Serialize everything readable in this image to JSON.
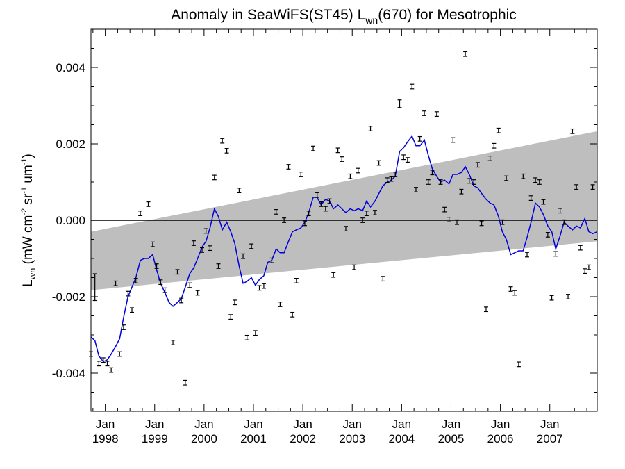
{
  "chart_data": {
    "type": "scatter",
    "title_main": "Anomaly in SeaWiFS(ST45) L",
    "title_sub": "wn",
    "title_end": "(670) for Mesotrophic",
    "ylabel": {
      "symbol": "L",
      "symbol_sub": "wn",
      "units_open": " (mW cm",
      "exp1": "-2",
      "mid1": " sr",
      "exp2": "-1",
      "mid2": " um",
      "exp3": "-1",
      "close": ")"
    },
    "ylim": [
      -0.005,
      0.005
    ],
    "yticks": [
      -0.004,
      -0.002,
      0.0,
      0.002,
      0.004
    ],
    "ytick_labels": [
      "-0.004",
      "-0.002",
      "0.000",
      "0.002",
      "0.004"
    ],
    "xlim": [
      1997.71,
      2007.96
    ],
    "xticks": [
      {
        "month": "Jan",
        "year": "1998",
        "x": 1998.0
      },
      {
        "month": "Jan",
        "year": "1999",
        "x": 1999.0
      },
      {
        "month": "Jan",
        "year": "2000",
        "x": 2000.0
      },
      {
        "month": "Jan",
        "year": "2001",
        "x": 2001.0
      },
      {
        "month": "Jan",
        "year": "2002",
        "x": 2002.0
      },
      {
        "month": "Jan",
        "year": "2003",
        "x": 2003.0
      },
      {
        "month": "Jan",
        "year": "2004",
        "x": 2004.0
      },
      {
        "month": "Jan",
        "year": "2005",
        "x": 2005.0
      },
      {
        "month": "Jan",
        "year": "2006",
        "x": 2006.0
      },
      {
        "month": "Jan",
        "year": "2007",
        "x": 2007.0
      }
    ],
    "zero_line": 0.0,
    "trend_band": {
      "x": [
        1997.71,
        2007.96
      ],
      "upper": [
        -0.0003,
        0.00233
      ],
      "lower": [
        -0.00183,
        -0.00055
      ],
      "color": "#bebebe"
    },
    "points": [
      {
        "x": 1997.71,
        "y": -0.0035,
        "err": 6e-05
      },
      {
        "x": 1997.79,
        "y": -0.00175,
        "err": 0.00035
      },
      {
        "x": 1997.87,
        "y": -0.00375,
        "err": 6e-05
      },
      {
        "x": 1997.96,
        "y": -0.00366,
        "err": 6e-05
      },
      {
        "x": 1998.04,
        "y": -0.00375,
        "err": 6e-05
      },
      {
        "x": 1998.12,
        "y": -0.00392,
        "err": 6e-05
      },
      {
        "x": 1998.21,
        "y": -0.00165,
        "err": 6e-05
      },
      {
        "x": 1998.29,
        "y": -0.0035,
        "err": 6e-05
      },
      {
        "x": 1998.37,
        "y": -0.0028,
        "err": 6e-05
      },
      {
        "x": 1998.46,
        "y": -0.00192,
        "err": 6e-05
      },
      {
        "x": 1998.54,
        "y": -0.00235,
        "err": 6e-05
      },
      {
        "x": 1998.62,
        "y": -0.00158,
        "err": 6e-05
      },
      {
        "x": 1998.71,
        "y": 0.00018,
        "err": 6e-05
      },
      {
        "x": 1998.87,
        "y": 0.00042,
        "err": 6e-05
      },
      {
        "x": 1998.96,
        "y": -0.00063,
        "err": 6e-05
      },
      {
        "x": 1999.04,
        "y": -0.0012,
        "err": 6e-05
      },
      {
        "x": 1999.12,
        "y": -0.00162,
        "err": 6e-05
      },
      {
        "x": 1999.21,
        "y": -0.00183,
        "err": 6e-05
      },
      {
        "x": 1999.37,
        "y": -0.0032,
        "err": 6e-05
      },
      {
        "x": 1999.46,
        "y": -0.00135,
        "err": 6e-05
      },
      {
        "x": 1999.54,
        "y": -0.0021,
        "err": 6e-05
      },
      {
        "x": 1999.62,
        "y": -0.00425,
        "err": 6e-05
      },
      {
        "x": 1999.71,
        "y": -0.0017,
        "err": 6e-05
      },
      {
        "x": 1999.79,
        "y": -0.0006,
        "err": 6e-05
      },
      {
        "x": 1999.87,
        "y": -0.0019,
        "err": 6e-05
      },
      {
        "x": 1999.96,
        "y": -0.00078,
        "err": 6e-05
      },
      {
        "x": 2000.04,
        "y": -0.00028,
        "err": 6e-05
      },
      {
        "x": 2000.12,
        "y": -0.00073,
        "err": 6e-05
      },
      {
        "x": 2000.21,
        "y": 0.00112,
        "err": 6e-05
      },
      {
        "x": 2000.29,
        "y": -0.0012,
        "err": 6e-05
      },
      {
        "x": 2000.37,
        "y": 0.00208,
        "err": 6e-05
      },
      {
        "x": 2000.46,
        "y": 0.00182,
        "err": 6e-05
      },
      {
        "x": 2000.54,
        "y": -0.00253,
        "err": 6e-05
      },
      {
        "x": 2000.62,
        "y": -0.00215,
        "err": 6e-05
      },
      {
        "x": 2000.71,
        "y": 0.00078,
        "err": 6e-05
      },
      {
        "x": 2000.79,
        "y": -0.00094,
        "err": 6e-05
      },
      {
        "x": 2000.87,
        "y": -0.00307,
        "err": 6e-05
      },
      {
        "x": 2000.96,
        "y": -0.00068,
        "err": 6e-05
      },
      {
        "x": 2001.04,
        "y": -0.00295,
        "err": 6e-05
      },
      {
        "x": 2001.12,
        "y": -0.00177,
        "err": 6e-05
      },
      {
        "x": 2001.21,
        "y": -0.00172,
        "err": 6e-05
      },
      {
        "x": 2001.37,
        "y": -0.00105,
        "err": 6e-05
      },
      {
        "x": 2001.46,
        "y": 0.00022,
        "err": 6e-05
      },
      {
        "x": 2001.54,
        "y": -0.0022,
        "err": 6e-05
      },
      {
        "x": 2001.62,
        "y": 0.0,
        "err": 6e-05
      },
      {
        "x": 2001.71,
        "y": 0.0014,
        "err": 6e-05
      },
      {
        "x": 2001.79,
        "y": -0.00247,
        "err": 6e-05
      },
      {
        "x": 2001.87,
        "y": -0.00158,
        "err": 6e-05
      },
      {
        "x": 2001.96,
        "y": 0.0012,
        "err": 6e-05
      },
      {
        "x": 2002.04,
        "y": -8e-05,
        "err": 6e-05
      },
      {
        "x": 2002.12,
        "y": 0.00018,
        "err": 6e-05
      },
      {
        "x": 2002.21,
        "y": 0.00188,
        "err": 6e-05
      },
      {
        "x": 2002.29,
        "y": 0.00066,
        "err": 6e-05
      },
      {
        "x": 2002.37,
        "y": 0.00042,
        "err": 6e-05
      },
      {
        "x": 2002.46,
        "y": 0.0003,
        "err": 6e-05
      },
      {
        "x": 2002.54,
        "y": 0.0005,
        "err": 6e-05
      },
      {
        "x": 2002.62,
        "y": -0.00143,
        "err": 6e-05
      },
      {
        "x": 2002.71,
        "y": 0.00183,
        "err": 6e-05
      },
      {
        "x": 2002.79,
        "y": 0.0016,
        "err": 6e-05
      },
      {
        "x": 2002.87,
        "y": -0.00022,
        "err": 6e-05
      },
      {
        "x": 2002.96,
        "y": 0.00115,
        "err": 6e-05
      },
      {
        "x": 2003.04,
        "y": -0.00123,
        "err": 6e-05
      },
      {
        "x": 2003.12,
        "y": 0.0013,
        "err": 6e-05
      },
      {
        "x": 2003.21,
        "y": 0.0,
        "err": 6e-05
      },
      {
        "x": 2003.29,
        "y": 0.00018,
        "err": 6e-05
      },
      {
        "x": 2003.37,
        "y": 0.0024,
        "err": 6e-05
      },
      {
        "x": 2003.46,
        "y": 0.0002,
        "err": 6e-05
      },
      {
        "x": 2003.54,
        "y": 0.0015,
        "err": 6e-05
      },
      {
        "x": 2003.62,
        "y": -0.00153,
        "err": 6e-05
      },
      {
        "x": 2003.71,
        "y": 0.00105,
        "err": 6e-05
      },
      {
        "x": 2003.79,
        "y": 0.00108,
        "err": 6e-05
      },
      {
        "x": 2003.87,
        "y": 0.0012,
        "err": 6e-05
      },
      {
        "x": 2003.96,
        "y": 0.00305,
        "err": 0.0001
      },
      {
        "x": 2004.04,
        "y": 0.00165,
        "err": 6e-05
      },
      {
        "x": 2004.12,
        "y": 0.00158,
        "err": 6e-05
      },
      {
        "x": 2004.21,
        "y": 0.0035,
        "err": 6e-05
      },
      {
        "x": 2004.29,
        "y": 0.0008,
        "err": 6e-05
      },
      {
        "x": 2004.37,
        "y": 0.00213,
        "err": 6e-05
      },
      {
        "x": 2004.46,
        "y": 0.0028,
        "err": 6e-05
      },
      {
        "x": 2004.54,
        "y": 0.001,
        "err": 6e-05
      },
      {
        "x": 2004.62,
        "y": 0.00125,
        "err": 6e-05
      },
      {
        "x": 2004.71,
        "y": 0.00278,
        "err": 6e-05
      },
      {
        "x": 2004.79,
        "y": 0.001,
        "err": 6e-05
      },
      {
        "x": 2004.87,
        "y": 0.00028,
        "err": 6e-05
      },
      {
        "x": 2004.96,
        "y": 2e-05,
        "err": 6e-05
      },
      {
        "x": 2005.04,
        "y": 0.0021,
        "err": 6e-05
      },
      {
        "x": 2005.12,
        "y": -5e-05,
        "err": 6e-05
      },
      {
        "x": 2005.21,
        "y": 0.00075,
        "err": 6e-05
      },
      {
        "x": 2005.29,
        "y": 0.00435,
        "err": 6e-05
      },
      {
        "x": 2005.37,
        "y": 0.00103,
        "err": 6e-05
      },
      {
        "x": 2005.46,
        "y": 0.001,
        "err": 6e-05
      },
      {
        "x": 2005.54,
        "y": 0.00145,
        "err": 6e-05
      },
      {
        "x": 2005.62,
        "y": -8e-05,
        "err": 6e-05
      },
      {
        "x": 2005.71,
        "y": -0.00233,
        "err": 6e-05
      },
      {
        "x": 2005.79,
        "y": 0.00162,
        "err": 6e-05
      },
      {
        "x": 2005.87,
        "y": 0.00195,
        "err": 6e-05
      },
      {
        "x": 2005.96,
        "y": 0.00235,
        "err": 6e-05
      },
      {
        "x": 2006.04,
        "y": -5e-05,
        "err": 6e-05
      },
      {
        "x": 2006.12,
        "y": 0.0011,
        "err": 6e-05
      },
      {
        "x": 2006.21,
        "y": -0.0018,
        "err": 6e-05
      },
      {
        "x": 2006.29,
        "y": -0.0019,
        "err": 6e-05
      },
      {
        "x": 2006.37,
        "y": -0.00377,
        "err": 6e-05
      },
      {
        "x": 2006.46,
        "y": 0.00115,
        "err": 6e-05
      },
      {
        "x": 2006.54,
        "y": -0.0009,
        "err": 6e-05
      },
      {
        "x": 2006.62,
        "y": 0.00058,
        "err": 6e-05
      },
      {
        "x": 2006.71,
        "y": 0.00105,
        "err": 6e-05
      },
      {
        "x": 2006.79,
        "y": 0.001,
        "err": 6e-05
      },
      {
        "x": 2006.87,
        "y": 0.00048,
        "err": 6e-05
      },
      {
        "x": 2006.96,
        "y": -0.00038,
        "err": 6e-05
      },
      {
        "x": 2007.04,
        "y": -0.00203,
        "err": 6e-05
      },
      {
        "x": 2007.12,
        "y": -0.00088,
        "err": 6e-05
      },
      {
        "x": 2007.21,
        "y": 0.00025,
        "err": 6e-05
      },
      {
        "x": 2007.29,
        "y": -5e-05,
        "err": 6e-05
      },
      {
        "x": 2007.37,
        "y": -0.002,
        "err": 6e-05
      },
      {
        "x": 2007.46,
        "y": 0.00233,
        "err": 6e-05
      },
      {
        "x": 2007.54,
        "y": 0.00087,
        "err": 6e-05
      },
      {
        "x": 2007.62,
        "y": -0.00072,
        "err": 6e-05
      },
      {
        "x": 2007.71,
        "y": -0.00133,
        "err": 6e-05
      },
      {
        "x": 2007.79,
        "y": -0.00123,
        "err": 6e-05
      },
      {
        "x": 2007.87,
        "y": 0.00087,
        "err": 6e-05
      }
    ],
    "smooth_line": {
      "color": "#0000dd",
      "points": [
        [
          1997.71,
          -0.00305
        ],
        [
          1997.79,
          -0.00315
        ],
        [
          1997.87,
          -0.00355
        ],
        [
          1997.96,
          -0.0037
        ],
        [
          1998.04,
          -0.00365
        ],
        [
          1998.12,
          -0.0035
        ],
        [
          1998.21,
          -0.0033
        ],
        [
          1998.29,
          -0.0031
        ],
        [
          1998.37,
          -0.00255
        ],
        [
          1998.46,
          -0.002
        ],
        [
          1998.54,
          -0.00175
        ],
        [
          1998.62,
          -0.0015
        ],
        [
          1998.71,
          -0.00105
        ],
        [
          1998.79,
          -0.001
        ],
        [
          1998.87,
          -0.001
        ],
        [
          1998.96,
          -0.0009
        ],
        [
          1999.04,
          -0.0013
        ],
        [
          1999.12,
          -0.00165
        ],
        [
          1999.21,
          -0.0019
        ],
        [
          1999.29,
          -0.00215
        ],
        [
          1999.37,
          -0.00225
        ],
        [
          1999.46,
          -0.00215
        ],
        [
          1999.54,
          -0.00205
        ],
        [
          1999.62,
          -0.00175
        ],
        [
          1999.71,
          -0.0014
        ],
        [
          1999.79,
          -0.00125
        ],
        [
          1999.87,
          -0.001
        ],
        [
          1999.96,
          -0.0007
        ],
        [
          2000.04,
          -0.00055
        ],
        [
          2000.12,
          -0.0002
        ],
        [
          2000.21,
          0.0003
        ],
        [
          2000.29,
          0.0001
        ],
        [
          2000.37,
          -0.00025
        ],
        [
          2000.46,
          -5e-05
        ],
        [
          2000.54,
          -0.0003
        ],
        [
          2000.62,
          -0.0006
        ],
        [
          2000.71,
          -0.0012
        ],
        [
          2000.79,
          -0.00165
        ],
        [
          2000.87,
          -0.0016
        ],
        [
          2000.96,
          -0.0015
        ],
        [
          2001.04,
          -0.0017
        ],
        [
          2001.12,
          -0.00155
        ],
        [
          2001.21,
          -0.00145
        ],
        [
          2001.29,
          -0.0011
        ],
        [
          2001.37,
          -0.00105
        ],
        [
          2001.46,
          -0.00075
        ],
        [
          2001.54,
          -0.00085
        ],
        [
          2001.62,
          -0.00085
        ],
        [
          2001.71,
          -0.00055
        ],
        [
          2001.79,
          -0.0003
        ],
        [
          2001.87,
          -0.00025
        ],
        [
          2001.96,
          -0.0002
        ],
        [
          2002.04,
          -5e-05
        ],
        [
          2002.12,
          0.0002
        ],
        [
          2002.21,
          0.0006
        ],
        [
          2002.29,
          0.0006
        ],
        [
          2002.37,
          0.0004
        ],
        [
          2002.46,
          0.00055
        ],
        [
          2002.54,
          0.0005
        ],
        [
          2002.62,
          0.0003
        ],
        [
          2002.71,
          0.0004
        ],
        [
          2002.79,
          0.0003
        ],
        [
          2002.87,
          0.0002
        ],
        [
          2002.96,
          0.0003
        ],
        [
          2003.04,
          0.00025
        ],
        [
          2003.12,
          0.0003
        ],
        [
          2003.21,
          0.00025
        ],
        [
          2003.29,
          0.0005
        ],
        [
          2003.37,
          0.00035
        ],
        [
          2003.46,
          0.0005
        ],
        [
          2003.54,
          0.0007
        ],
        [
          2003.62,
          0.0009
        ],
        [
          2003.71,
          0.001
        ],
        [
          2003.79,
          0.00105
        ],
        [
          2003.87,
          0.00115
        ],
        [
          2003.96,
          0.0018
        ],
        [
          2004.04,
          0.0019
        ],
        [
          2004.12,
          0.00205
        ],
        [
          2004.21,
          0.0022
        ],
        [
          2004.29,
          0.00195
        ],
        [
          2004.37,
          0.00195
        ],
        [
          2004.46,
          0.0021
        ],
        [
          2004.54,
          0.0017
        ],
        [
          2004.62,
          0.00135
        ],
        [
          2004.71,
          0.00115
        ],
        [
          2004.79,
          0.001
        ],
        [
          2004.87,
          0.00105
        ],
        [
          2004.96,
          0.00095
        ],
        [
          2005.04,
          0.0012
        ],
        [
          2005.12,
          0.0012
        ],
        [
          2005.21,
          0.00125
        ],
        [
          2005.29,
          0.0014
        ],
        [
          2005.37,
          0.0012
        ],
        [
          2005.46,
          0.0009
        ],
        [
          2005.54,
          0.00085
        ],
        [
          2005.62,
          0.0007
        ],
        [
          2005.71,
          0.00055
        ],
        [
          2005.79,
          0.00045
        ],
        [
          2005.87,
          0.0004
        ],
        [
          2005.96,
          0.0001
        ],
        [
          2006.04,
          -0.0003
        ],
        [
          2006.12,
          -0.0005
        ],
        [
          2006.21,
          -0.0009
        ],
        [
          2006.29,
          -0.00085
        ],
        [
          2006.37,
          -0.0008
        ],
        [
          2006.46,
          -0.0008
        ],
        [
          2006.54,
          -0.00045
        ],
        [
          2006.62,
          -5e-05
        ],
        [
          2006.71,
          0.00045
        ],
        [
          2006.79,
          0.00035
        ],
        [
          2006.87,
          0.00015
        ],
        [
          2006.96,
          -0.00015
        ],
        [
          2007.04,
          -0.0003
        ],
        [
          2007.12,
          -0.00075
        ],
        [
          2007.21,
          -0.0004
        ],
        [
          2007.29,
          -5e-05
        ],
        [
          2007.37,
          -0.00015
        ],
        [
          2007.46,
          -0.00025
        ],
        [
          2007.54,
          -0.00015
        ],
        [
          2007.62,
          -0.0002
        ],
        [
          2007.71,
          5e-05
        ],
        [
          2007.79,
          -0.0003
        ],
        [
          2007.87,
          -0.00035
        ],
        [
          2007.96,
          -0.0003
        ]
      ]
    }
  }
}
